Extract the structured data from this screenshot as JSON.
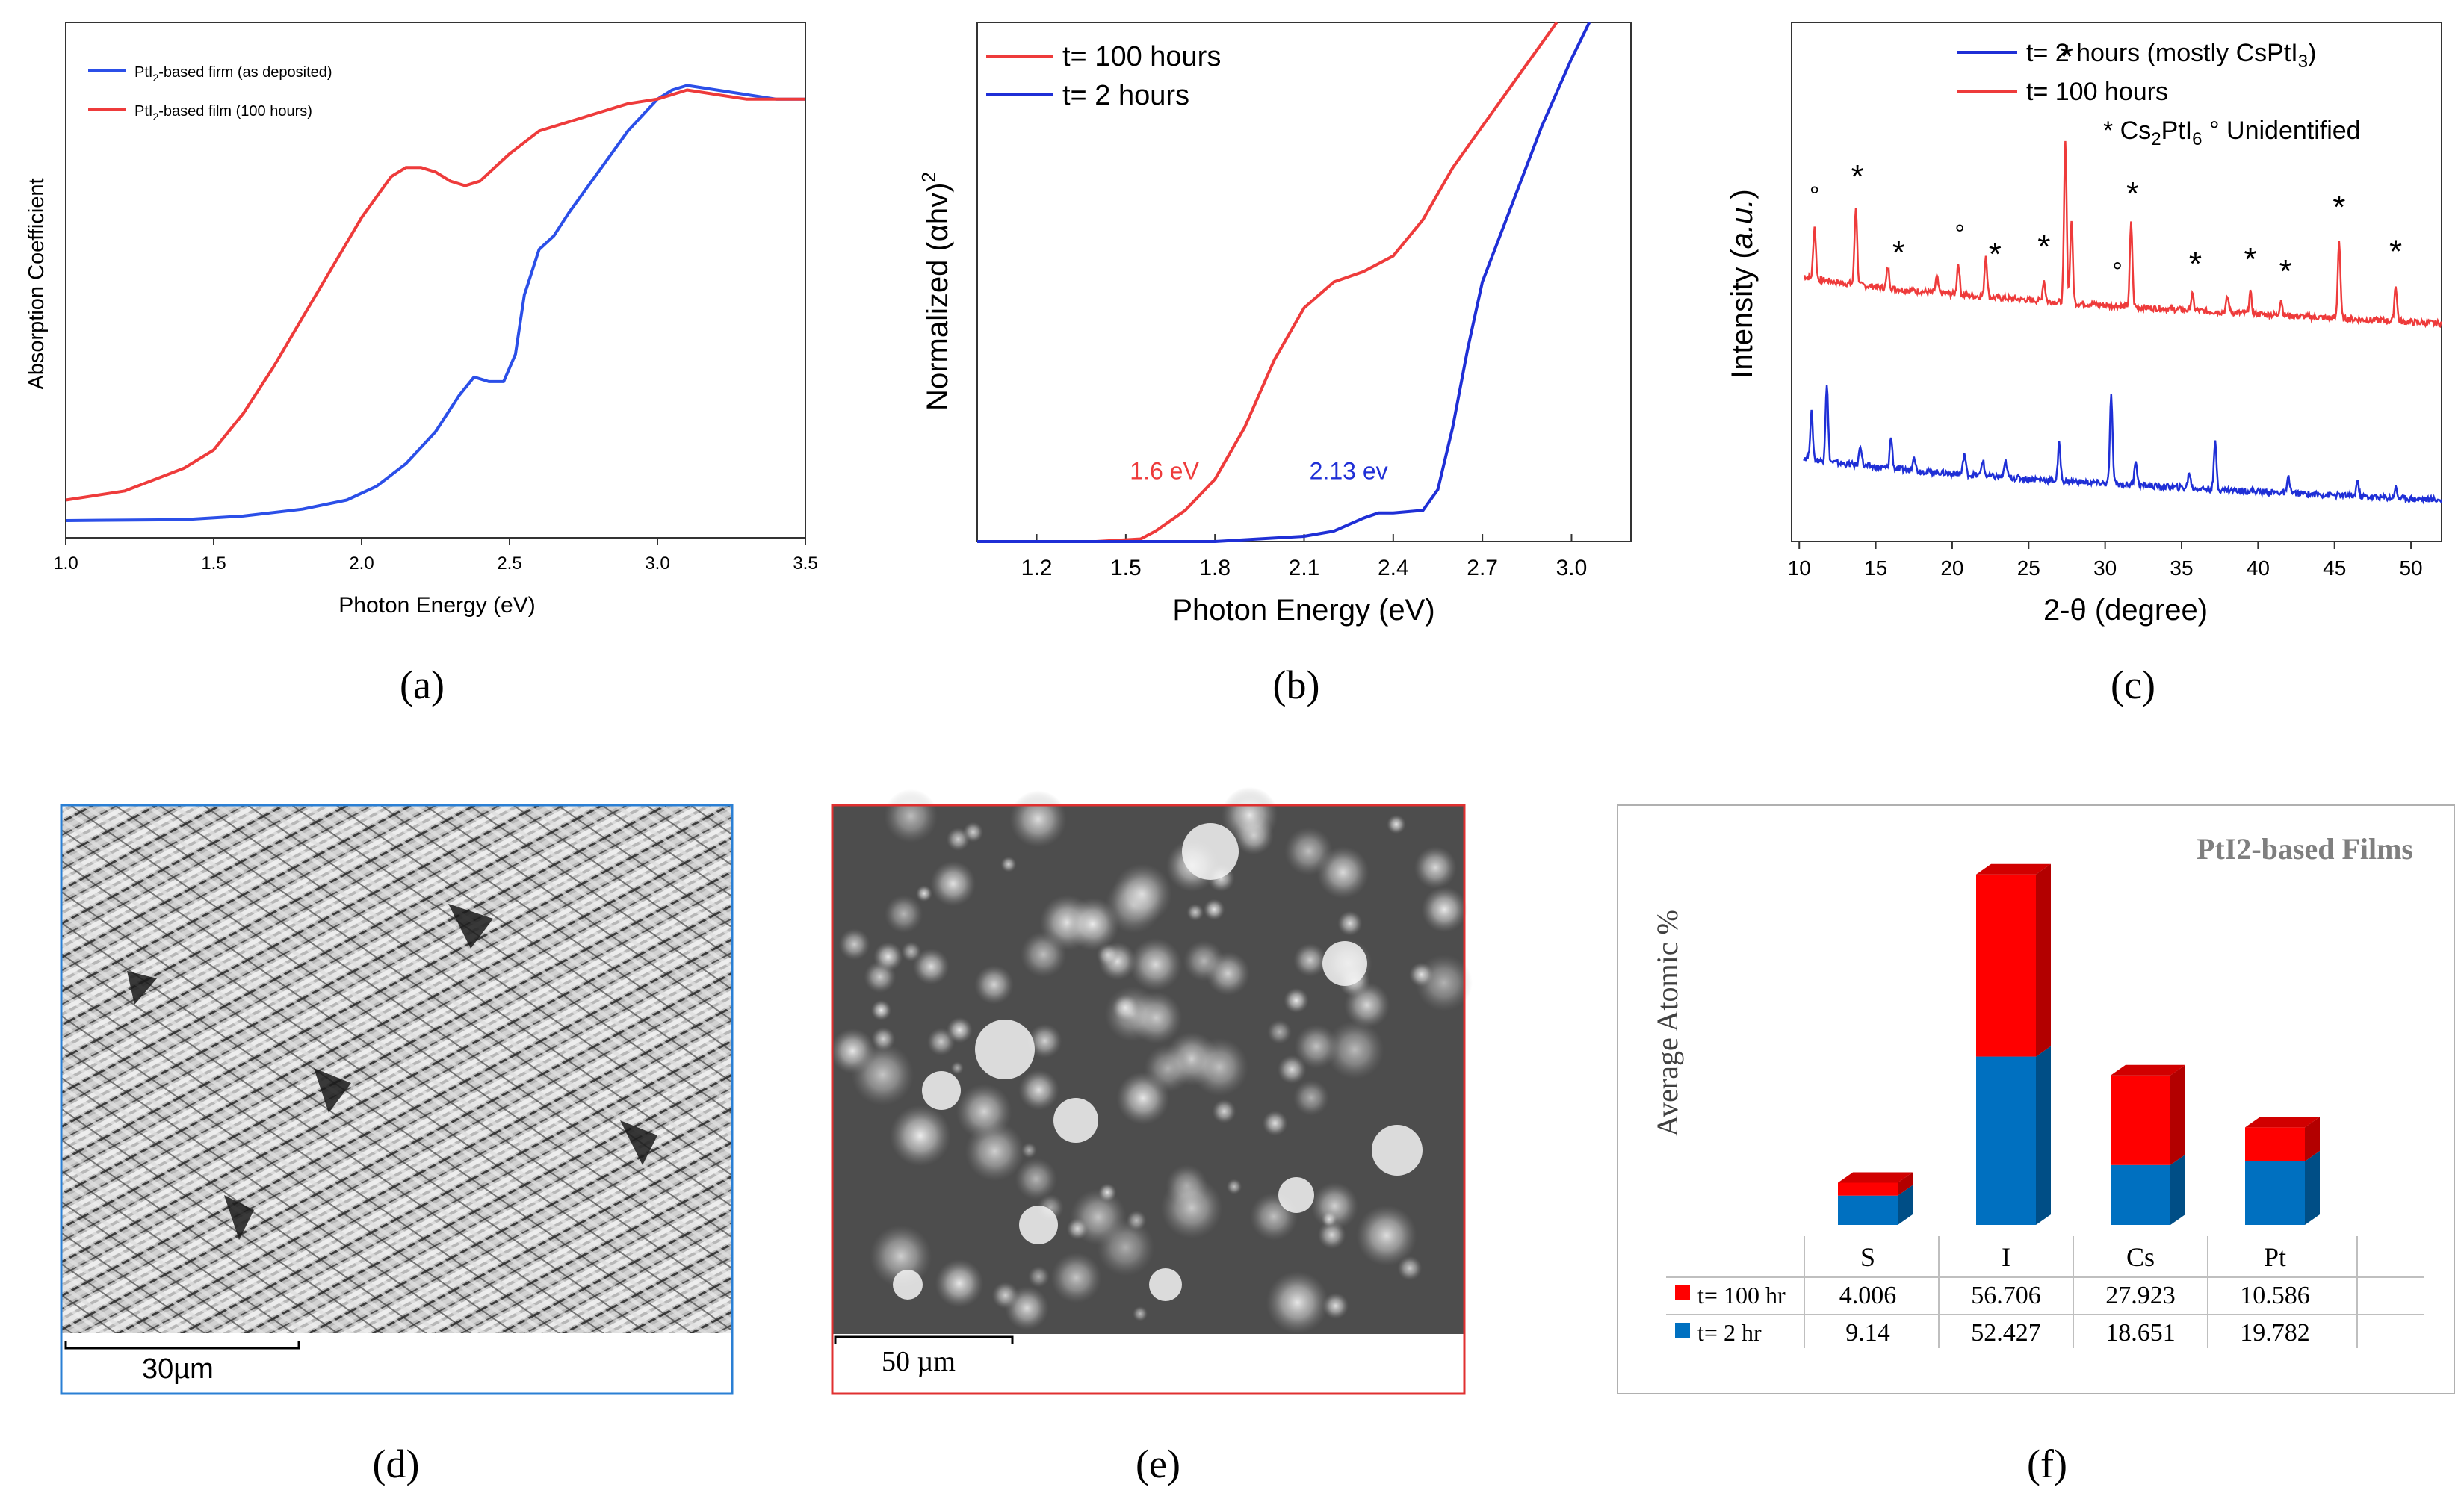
{
  "panels": {
    "a": {
      "label": "(a)"
    },
    "b": {
      "label": "(b)"
    },
    "c": {
      "label": "(c)"
    },
    "d": {
      "label": "(d)",
      "scale_bar": "30µm"
    },
    "e": {
      "label": "(e)",
      "scale_bar": "50 µm"
    },
    "f": {
      "label": "(f)"
    }
  },
  "colors": {
    "red": "#ee3b3b",
    "blue": "#1f2fd6",
    "bar_red": "#ff0000",
    "bar_blue": "#0070c0"
  },
  "chart_data": [
    {
      "id": "a",
      "type": "line",
      "title": "",
      "xlabel": "Photon Energy (eV)",
      "ylabel": "Absorption Coefficient",
      "xlim": [
        1.0,
        3.5
      ],
      "ylim": [
        0,
        1
      ],
      "xticks": [
        1.0,
        1.5,
        2.0,
        2.5,
        3.0,
        3.5
      ],
      "xtick_labels": [
        "1.0",
        "1.5",
        "2.0",
        "2.5",
        "3.0",
        "3.5"
      ],
      "legend": [
        {
          "prefix": "PtI",
          "sub": "2",
          "suffix": "-based firm (as deposited)",
          "color": "#2b4fe8"
        },
        {
          "prefix": "PtI",
          "sub": "2",
          "suffix": "-based film (100 hours)",
          "color": "#ee3b3b"
        }
      ],
      "series": [
        {
          "name": "PtI2-based firm (as deposited)",
          "color": "#2b4fe8",
          "x": [
            1.0,
            1.4,
            1.6,
            1.8,
            1.95,
            2.05,
            2.15,
            2.25,
            2.33,
            2.38,
            2.43,
            2.48,
            2.52,
            2.55,
            2.6,
            2.65,
            2.7,
            2.8,
            2.9,
            3.0,
            3.05,
            3.1,
            3.2,
            3.3,
            3.4,
            3.5
          ],
          "y": [
            0.005,
            0.007,
            0.015,
            0.03,
            0.05,
            0.08,
            0.13,
            0.2,
            0.28,
            0.32,
            0.31,
            0.31,
            0.37,
            0.5,
            0.6,
            0.63,
            0.68,
            0.77,
            0.86,
            0.93,
            0.95,
            0.96,
            0.95,
            0.94,
            0.93,
            0.93
          ]
        },
        {
          "name": "PtI2-based film (100 hours)",
          "color": "#ee3b3b",
          "x": [
            1.0,
            1.2,
            1.4,
            1.5,
            1.6,
            1.7,
            1.8,
            1.9,
            2.0,
            2.1,
            2.15,
            2.2,
            2.25,
            2.3,
            2.35,
            2.4,
            2.5,
            2.6,
            2.7,
            2.8,
            2.9,
            3.0,
            3.1,
            3.2,
            3.3,
            3.4,
            3.5
          ],
          "y": [
            0.05,
            0.07,
            0.12,
            0.16,
            0.24,
            0.34,
            0.45,
            0.56,
            0.67,
            0.76,
            0.78,
            0.78,
            0.77,
            0.75,
            0.74,
            0.75,
            0.81,
            0.86,
            0.88,
            0.9,
            0.92,
            0.93,
            0.95,
            0.94,
            0.93,
            0.93,
            0.93
          ]
        }
      ]
    },
    {
      "id": "b",
      "type": "line",
      "title": "",
      "xlabel": "Photon Energy (eV)",
      "ylabel": "Normalized (αhv)",
      "ylabel_sup": "2",
      "xlim": [
        1.0,
        3.2
      ],
      "ylim": [
        0,
        1
      ],
      "xticks": [
        1.2,
        1.5,
        1.8,
        2.1,
        2.4,
        2.7,
        3.0
      ],
      "xtick_labels": [
        "1.2",
        "1.5",
        "1.8",
        "2.1",
        "2.4",
        "2.7",
        "3.0"
      ],
      "legend": [
        {
          "label": "t= 100 hours",
          "color": "#ee3b3b"
        },
        {
          "label": "t= 2 hours",
          "color": "#1f2fd6"
        }
      ],
      "annotations": [
        {
          "text": "1.6 eV",
          "x": 1.63,
          "y": 0.12,
          "color": "#ee3b3b"
        },
        {
          "text": "2.13 ev",
          "x": 2.25,
          "y": 0.12,
          "color": "#1f2fd6"
        }
      ],
      "series": [
        {
          "name": "t= 100 hours",
          "color": "#ee3b3b",
          "x": [
            1.0,
            1.4,
            1.55,
            1.6,
            1.7,
            1.8,
            1.9,
            2.0,
            2.1,
            2.2,
            2.3,
            2.4,
            2.5,
            2.6,
            2.7,
            2.8,
            2.9,
            2.95
          ],
          "y": [
            0.0,
            0.0,
            0.005,
            0.02,
            0.06,
            0.12,
            0.22,
            0.35,
            0.45,
            0.5,
            0.52,
            0.55,
            0.62,
            0.72,
            0.8,
            0.88,
            0.96,
            1.0
          ]
        },
        {
          "name": "t= 2 hours",
          "color": "#1f2fd6",
          "x": [
            1.0,
            1.8,
            2.1,
            2.2,
            2.3,
            2.35,
            2.4,
            2.5,
            2.55,
            2.6,
            2.65,
            2.7,
            2.8,
            2.9,
            3.0,
            3.06
          ],
          "y": [
            0.0,
            0.0,
            0.01,
            0.02,
            0.045,
            0.055,
            0.055,
            0.06,
            0.1,
            0.22,
            0.37,
            0.5,
            0.65,
            0.8,
            0.93,
            1.0
          ]
        }
      ]
    },
    {
      "id": "c",
      "type": "line",
      "title": "",
      "xlabel": "2-θ (degree)",
      "ylabel": "Intensity (a.u.)",
      "xlim": [
        9.5,
        52
      ],
      "ylim": [
        0,
        1
      ],
      "xticks": [
        10,
        15,
        20,
        25,
        30,
        35,
        40,
        45,
        50
      ],
      "xtick_labels": [
        "10",
        "15",
        "20",
        "25",
        "30",
        "35",
        "40",
        "45",
        "50"
      ],
      "legend": [
        {
          "prefix": "t= 2 hours (mostly CsPtI",
          "sub": "3",
          "suffix": ")",
          "color": "#1f2fd6"
        },
        {
          "prefix": "t= 100 hours",
          "sub": "",
          "suffix": "",
          "color": "#ee3b3b"
        },
        {
          "prefix": "*  Cs",
          "sub": "2",
          "suffix": "PtI",
          "sub2": "6",
          "tail": "   °  Unidentified",
          "color": "#000000"
        }
      ],
      "peak_markers": [
        {
          "symbol": "°",
          "x": 11.0
        },
        {
          "symbol": "*",
          "x": 13.8
        },
        {
          "symbol": "*",
          "x": 16.5
        },
        {
          "symbol": "°",
          "x": 20.5
        },
        {
          "symbol": "*",
          "x": 22.8
        },
        {
          "symbol": "*",
          "x": 26.0
        },
        {
          "symbol": "*",
          "x": 27.5
        },
        {
          "symbol": "°",
          "x": 30.8
        },
        {
          "symbol": "*",
          "x": 31.8
        },
        {
          "symbol": "*",
          "x": 35.9
        },
        {
          "symbol": "*",
          "x": 39.5
        },
        {
          "symbol": "*",
          "x": 41.8
        },
        {
          "symbol": "*",
          "x": 45.3
        },
        {
          "symbol": "*",
          "x": 49.0
        }
      ],
      "series": [
        {
          "name": "t= 100 hours",
          "color": "#ee3b3b",
          "baseline_from": 0.52,
          "baseline_to": 0.42,
          "peaks": [
            [
              11.0,
              0.1
            ],
            [
              13.7,
              0.15
            ],
            [
              15.8,
              0.04
            ],
            [
              19.0,
              0.03
            ],
            [
              20.4,
              0.06
            ],
            [
              22.2,
              0.08
            ],
            [
              26.0,
              0.04
            ],
            [
              27.4,
              0.31
            ],
            [
              27.8,
              0.16
            ],
            [
              31.7,
              0.16
            ],
            [
              35.7,
              0.03
            ],
            [
              38.0,
              0.03
            ],
            [
              39.5,
              0.04
            ],
            [
              41.5,
              0.03
            ],
            [
              45.3,
              0.15
            ],
            [
              49.0,
              0.07
            ]
          ]
        },
        {
          "name": "t= 2 hours (mostly CsPtI3)",
          "color": "#1f2fd6",
          "baseline_from": 0.17,
          "baseline_to": 0.08,
          "peaks": [
            [
              10.8,
              0.09
            ],
            [
              11.8,
              0.15
            ],
            [
              14.0,
              0.04
            ],
            [
              16.0,
              0.06
            ],
            [
              17.5,
              0.03
            ],
            [
              20.8,
              0.04
            ],
            [
              22.0,
              0.03
            ],
            [
              23.5,
              0.03
            ],
            [
              27.0,
              0.07
            ],
            [
              30.4,
              0.17
            ],
            [
              32.0,
              0.05
            ],
            [
              35.5,
              0.03
            ],
            [
              37.2,
              0.09
            ],
            [
              42.0,
              0.03
            ],
            [
              46.5,
              0.03
            ],
            [
              49.0,
              0.02
            ]
          ]
        }
      ]
    },
    {
      "id": "f",
      "type": "bar",
      "title": "PtI2-based Films",
      "ylabel": "Average Atomic %",
      "categories": [
        "S",
        "I",
        "Cs",
        "Pt"
      ],
      "series": [
        {
          "name": "t= 100 hr",
          "color": "#ff0000",
          "values": [
            "4.006",
            "56.706",
            "27.923",
            "10.586"
          ]
        },
        {
          "name": "t= 2 hr",
          "color": "#0070c0",
          "values": [
            "9.14",
            "52.427",
            "18.651",
            "19.782"
          ]
        }
      ]
    }
  ]
}
